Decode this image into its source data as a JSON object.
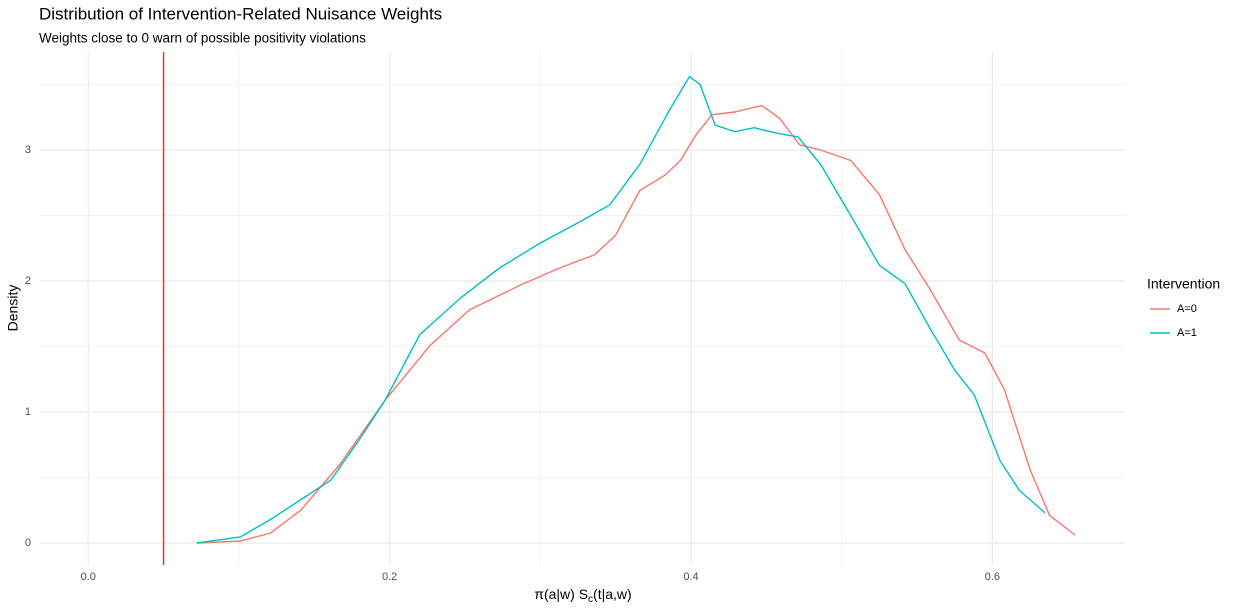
{
  "chart_data": {
    "type": "line",
    "title": "Distribution of Intervention-Related Nuisance Weights",
    "subtitle": "Weights close to 0 warn of possible positivity violations",
    "x_label": [
      "π(a|w) S",
      "c",
      "(t|a,w)"
    ],
    "y_label": "Density",
    "legend_title": "Intervention",
    "legend_position": "right",
    "xlim": [
      -0.032,
      0.688
    ],
    "ylim": [
      -0.168,
      3.748
    ],
    "xticks": [
      {
        "value": 0,
        "label": "0.0"
      },
      0.2,
      0.4,
      0.6
    ],
    "yticks": [
      0,
      1,
      2,
      3
    ],
    "minor_xticks": [
      0.1,
      0.3,
      0.5
    ],
    "minor_yticks": [
      0.5,
      1.5,
      2.5,
      3.5
    ],
    "grid": true,
    "vline": {
      "x": 0.05,
      "color": "#e8322b"
    },
    "series": [
      {
        "name": "A=0",
        "color": "#F8766D",
        "x": [
          0.072,
          0.101,
          0.121,
          0.141,
          0.167,
          0.197,
          0.227,
          0.253,
          0.287,
          0.313,
          0.336,
          0.35,
          0.366,
          0.383,
          0.393,
          0.403,
          0.414,
          0.429,
          0.447,
          0.459,
          0.472,
          0.486,
          0.506,
          0.525,
          0.542,
          0.559,
          0.578,
          0.595,
          0.608,
          0.625,
          0.638,
          0.655
        ],
        "values": [
          0,
          0.015,
          0.076,
          0.25,
          0.6,
          1.09,
          1.51,
          1.78,
          1.97,
          2.1,
          2.2,
          2.35,
          2.69,
          2.81,
          2.92,
          3.11,
          3.27,
          3.29,
          3.34,
          3.24,
          3.04,
          3.0,
          2.92,
          2.66,
          2.24,
          1.93,
          1.55,
          1.45,
          1.17,
          0.56,
          0.21,
          0.06
        ]
      },
      {
        "name": "A=1",
        "color": "#00BFC4",
        "x": [
          0.072,
          0.101,
          0.121,
          0.141,
          0.161,
          0.18,
          0.197,
          0.22,
          0.247,
          0.273,
          0.3,
          0.326,
          0.346,
          0.366,
          0.386,
          0.399,
          0.406,
          0.416,
          0.429,
          0.442,
          0.456,
          0.471,
          0.486,
          0.506,
          0.525,
          0.542,
          0.559,
          0.575,
          0.588,
          0.605,
          0.618,
          0.635
        ],
        "values": [
          0,
          0.046,
          0.18,
          0.33,
          0.48,
          0.79,
          1.09,
          1.59,
          1.87,
          2.1,
          2.29,
          2.45,
          2.58,
          2.89,
          3.31,
          3.56,
          3.5,
          3.19,
          3.14,
          3.17,
          3.13,
          3.1,
          2.89,
          2.5,
          2.12,
          1.98,
          1.63,
          1.32,
          1.13,
          0.63,
          0.4,
          0.23
        ]
      }
    ]
  }
}
